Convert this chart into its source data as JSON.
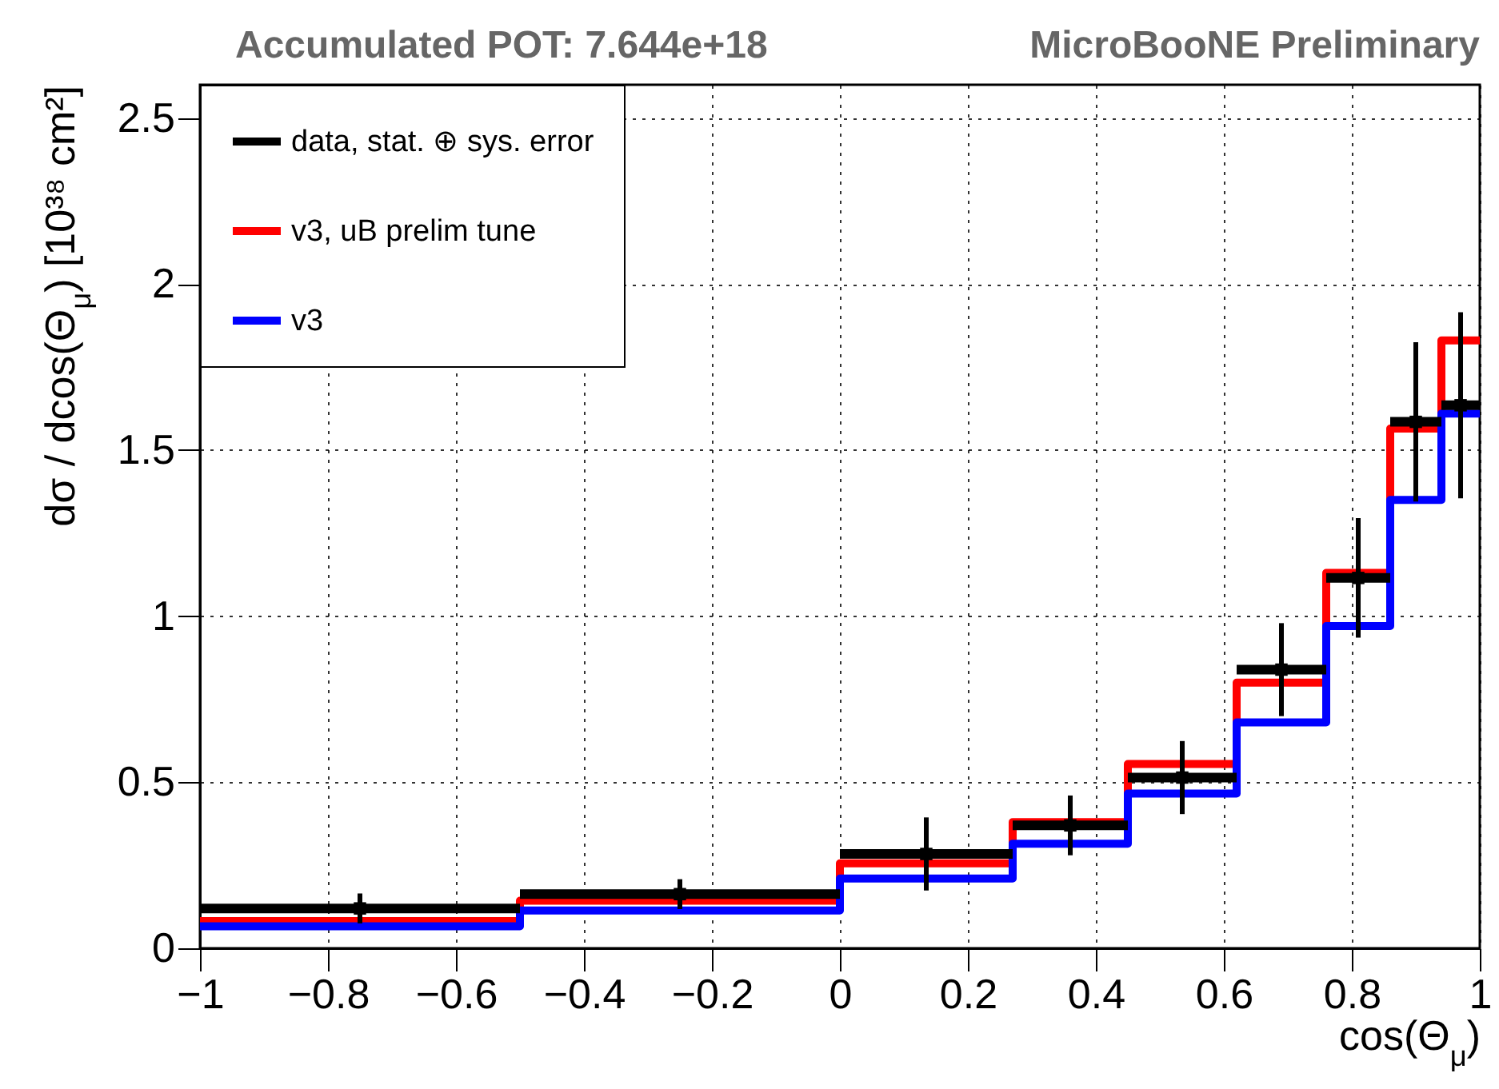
{
  "chart_data": {
    "type": "histogram",
    "title": "Accumulated POT: 7.644e+18",
    "annotations": [
      "MicroBooNE Preliminary"
    ],
    "xlabel": "cos(Θ$_{μ}$)",
    "ylabel": "dσ / dcos(Θ$_{μ}$)   [10³⁸ cm²]",
    "bins": [
      -1,
      -0.5,
      0,
      0.27,
      0.45,
      0.62,
      0.76,
      0.86,
      0.94,
      1
    ],
    "series": [
      {
        "name": "data, stat. ⊕ sys. error",
        "type": "scatter",
        "color": "#000000",
        "x": [
          -0.75,
          -0.25,
          0.135,
          0.36,
          0.535,
          0.69,
          0.81,
          0.9,
          0.97
        ],
        "values": [
          0.12,
          0.163,
          0.284,
          0.37,
          0.514,
          0.839,
          1.115,
          1.585,
          1.635
        ],
        "errors": [
          0.045,
          0.045,
          0.11,
          0.09,
          0.11,
          0.14,
          0.18,
          0.24,
          0.28
        ],
        "xerrors": [
          0.25,
          0.25,
          0.135,
          0.09,
          0.085,
          0.07,
          0.05,
          0.04,
          0.03
        ]
      },
      {
        "name": "v3, uB prelim tune",
        "type": "histogram",
        "color": "#ff0000",
        "values": [
          0.082,
          0.143,
          0.256,
          0.38,
          0.555,
          0.8,
          1.13,
          1.565,
          1.83
        ]
      },
      {
        "name": "v3",
        "type": "histogram",
        "color": "#0000ff",
        "values": [
          0.066,
          0.114,
          0.21,
          0.315,
          0.466,
          0.68,
          0.97,
          1.35,
          1.61
        ]
      }
    ],
    "xlim": [
      -1,
      1
    ],
    "xticks": [
      -1,
      -0.8,
      -0.6,
      -0.4,
      -0.2,
      0,
      0.2,
      0.4,
      0.6,
      0.8,
      1
    ],
    "ylim": [
      0,
      2.6
    ],
    "yticks": [
      0,
      0.5,
      1,
      1.5,
      2,
      2.5
    ],
    "grid": true,
    "legend": "top left"
  }
}
